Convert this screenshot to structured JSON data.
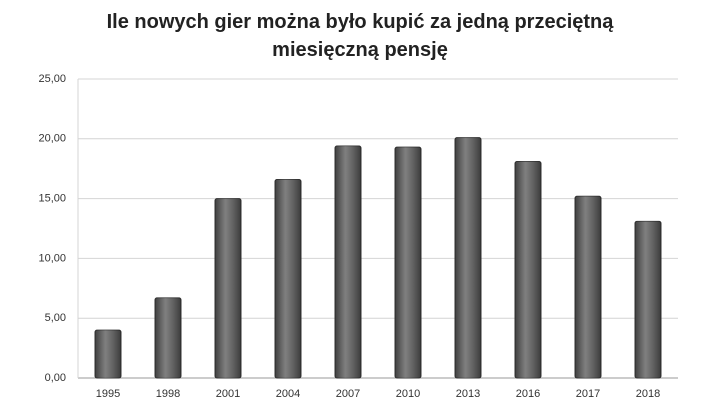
{
  "chart_data": {
    "type": "bar",
    "title": "Ile nowych gier można było kupić za jedną przeciętną miesięczną pensję",
    "categories": [
      "1995",
      "1998",
      "2001",
      "2004",
      "2007",
      "2010",
      "2013",
      "2016",
      "2017",
      "2018"
    ],
    "values": [
      4.0,
      6.7,
      15.0,
      16.6,
      19.4,
      19.3,
      20.1,
      18.1,
      15.2,
      13.1
    ],
    "color": "#555555",
    "ylim": [
      0,
      25
    ],
    "yticks": [
      {
        "value": 0,
        "label": "0,00"
      },
      {
        "value": 5,
        "label": "5,00"
      },
      {
        "value": 10,
        "label": "10,00"
      },
      {
        "value": 15,
        "label": "15,00"
      },
      {
        "value": 20,
        "label": "20,00"
      },
      {
        "value": 25,
        "label": "25,00"
      }
    ],
    "grid": true
  }
}
